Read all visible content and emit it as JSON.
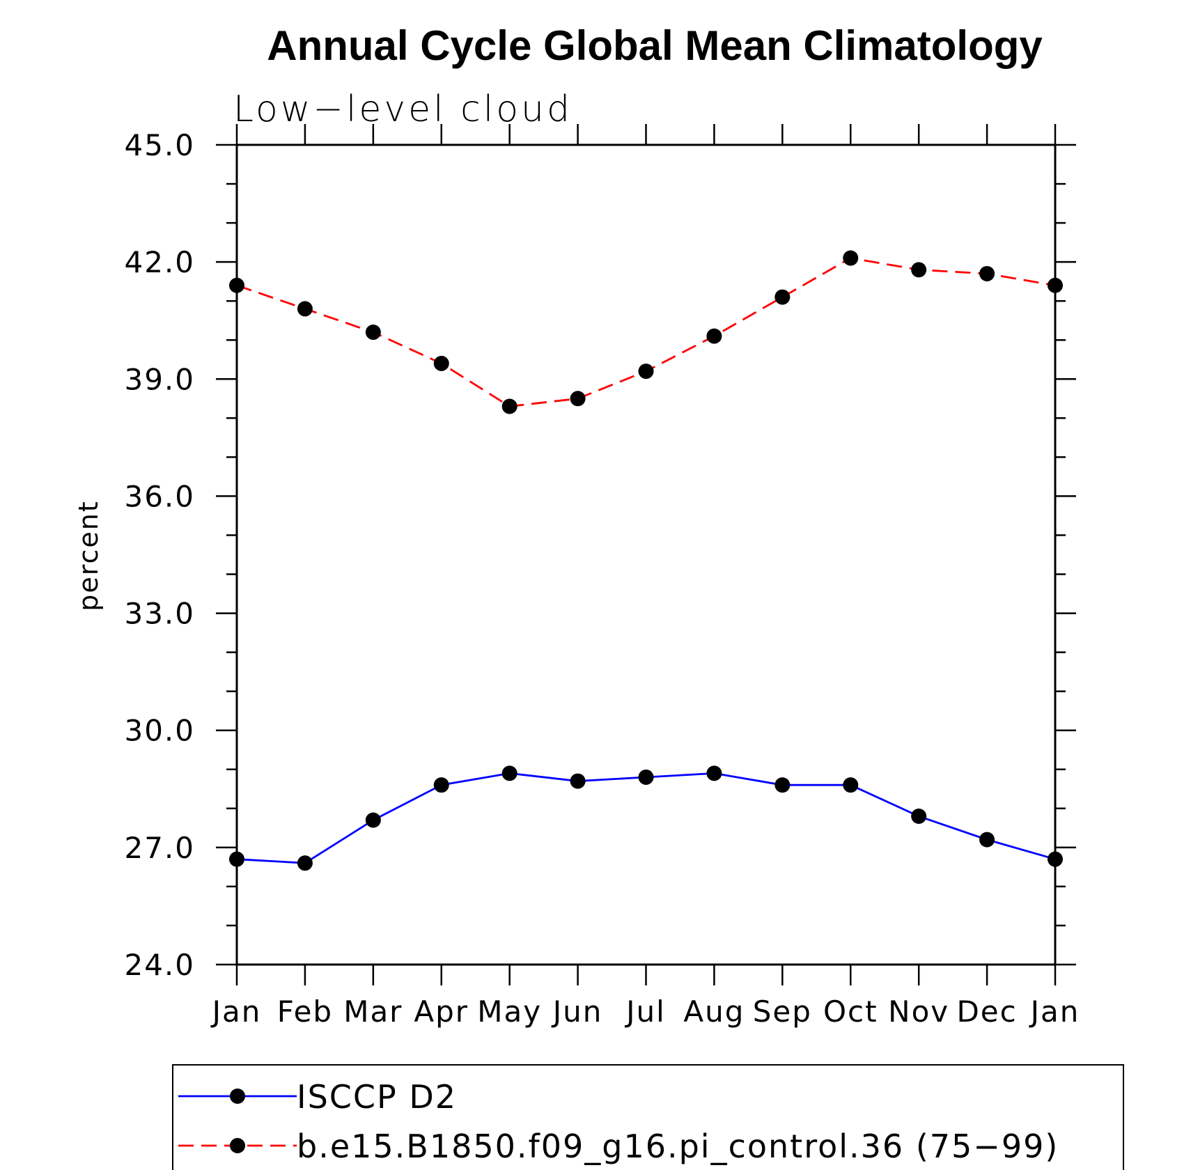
{
  "chart_data": {
    "type": "line",
    "title": "Annual Cycle Global Mean Climatology",
    "subtitle": "Low−level cloud",
    "xlabel": "",
    "ylabel": "percent",
    "categories": [
      "Jan",
      "Feb",
      "Mar",
      "Apr",
      "May",
      "Jun",
      "Jul",
      "Aug",
      "Sep",
      "Oct",
      "Nov",
      "Dec",
      "Jan"
    ],
    "ylim": [
      24.0,
      45.0
    ],
    "yticks": [
      "24.0",
      "27.0",
      "30.0",
      "33.0",
      "36.0",
      "39.0",
      "42.0",
      "45.0"
    ],
    "grid": false,
    "legend_position": "bottom",
    "series": [
      {
        "name": "ISCCP D2",
        "color": "#0000ff",
        "dash": "solid",
        "marker": "filled-circle",
        "values": [
          26.7,
          26.6,
          27.7,
          28.6,
          28.9,
          28.7,
          28.8,
          28.9,
          28.6,
          28.6,
          27.8,
          27.2,
          26.7
        ]
      },
      {
        "name": "b.e15.B1850.f09_g16.pi_control.36 (75−99)",
        "color": "#ff0000",
        "dash": "dashed",
        "marker": "filled-circle",
        "values": [
          41.4,
          40.8,
          40.2,
          39.4,
          38.3,
          38.5,
          39.2,
          40.1,
          41.1,
          42.1,
          41.8,
          41.7,
          41.4
        ]
      }
    ]
  }
}
